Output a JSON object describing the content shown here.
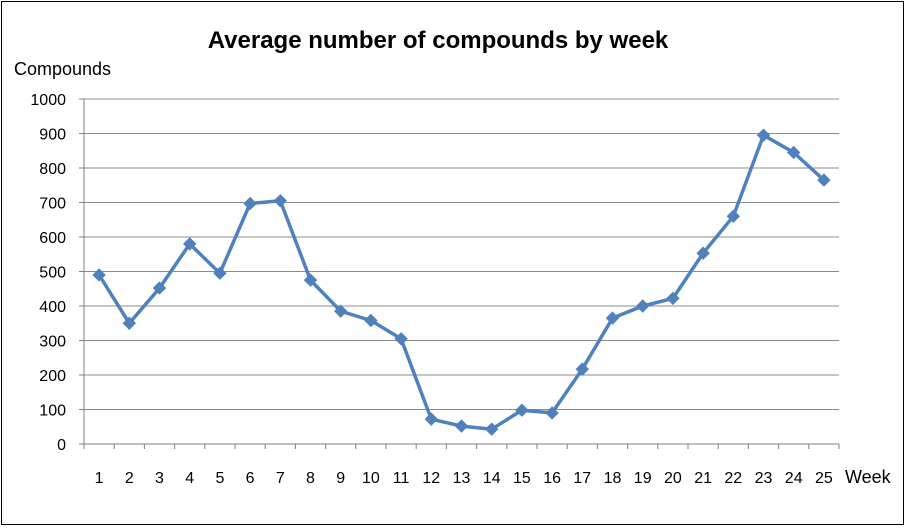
{
  "chart_data": {
    "type": "line",
    "title": "Average number of compounds by week",
    "xlabel": "Week",
    "ylabel": "Compounds",
    "ylim": [
      0,
      1000
    ],
    "yticks": [
      "0",
      "100",
      "200",
      "300",
      "400",
      "500",
      "600",
      "700",
      "800",
      "900",
      "1000"
    ],
    "grid": true,
    "categories": [
      "1",
      "2",
      "3",
      "4",
      "5",
      "6",
      "7",
      "8",
      "9",
      "10",
      "11",
      "12",
      "13",
      "14",
      "15",
      "16",
      "17",
      "18",
      "19",
      "20",
      "21",
      "22",
      "23",
      "24",
      "25"
    ],
    "series": [
      {
        "values": [
          490,
          350,
          452,
          580,
          495,
          697,
          705,
          475,
          385,
          358,
          305,
          72,
          52,
          43,
          98,
          90,
          217,
          365,
          400,
          422,
          553,
          660,
          895,
          845,
          765
        ],
        "color": "#4f81bd",
        "marker": "diamond"
      }
    ]
  }
}
